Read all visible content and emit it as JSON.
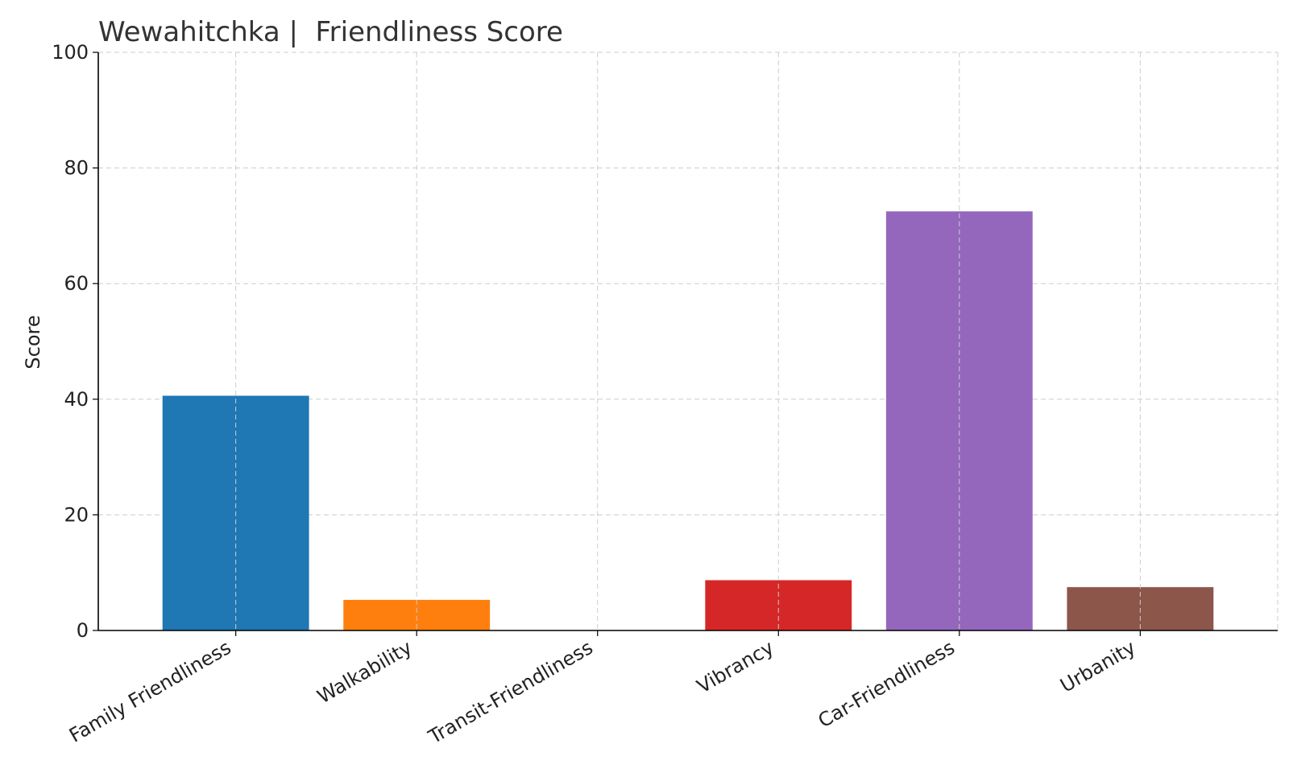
{
  "chart_data": {
    "type": "bar",
    "title": "Wewahitchka |  Friendliness Score",
    "xlabel": "",
    "ylabel": "Score",
    "ylim": [
      0,
      100
    ],
    "yticks": [
      0,
      20,
      40,
      60,
      80,
      100
    ],
    "grid": true,
    "categories": [
      "Family Friendliness",
      "Walkability",
      "Transit-Friendliness",
      "Vibrancy",
      "Car-Friendliness",
      "Urbanity"
    ],
    "values": [
      40.6,
      5.3,
      0,
      8.7,
      72.5,
      7.5
    ],
    "colors": [
      "#1f77b4",
      "#ff7f0e",
      "#2ca02c",
      "#d62728",
      "#9467bd",
      "#8c564b"
    ]
  }
}
